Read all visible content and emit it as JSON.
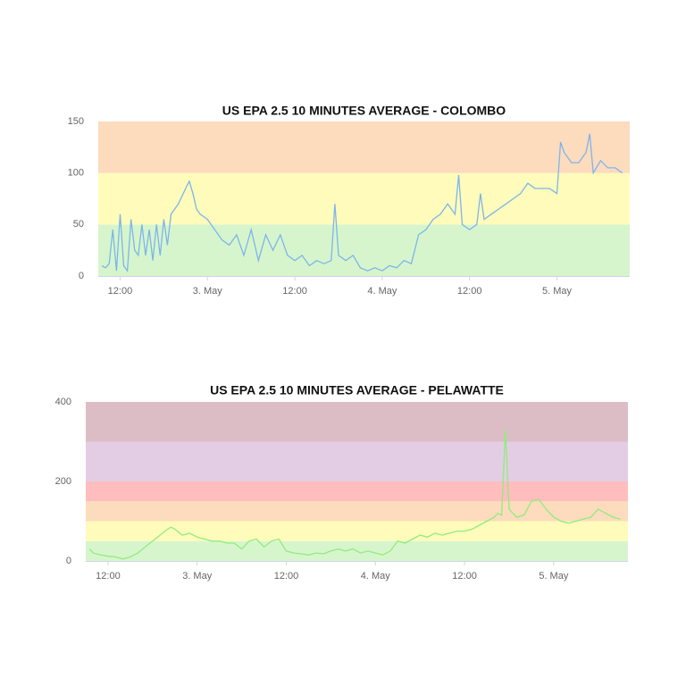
{
  "chart_data": [
    {
      "type": "line",
      "title": "US EPA 2.5 10 MINUTES AVERAGE - COLOMBO",
      "color": "#7cb5ec",
      "x": [
        9.5,
        10,
        10.5,
        11,
        11.5,
        12,
        12.5,
        13,
        13.5,
        14,
        14.5,
        15,
        15.5,
        16,
        16.5,
        17,
        17.5,
        18,
        18.5,
        19,
        20,
        21,
        21.5,
        22,
        22.5,
        23,
        24,
        25,
        26,
        27,
        28,
        29,
        30,
        31,
        32,
        33,
        34,
        35,
        36,
        37,
        38,
        39,
        40,
        41,
        41.5,
        42,
        43,
        44,
        45,
        46,
        47,
        48,
        49,
        50,
        51,
        52,
        53,
        54,
        55,
        56,
        57,
        58,
        58.5,
        59,
        60,
        61,
        61.5,
        62,
        63,
        64,
        65,
        66,
        67,
        68,
        69,
        70,
        71,
        72,
        72.5,
        73,
        74,
        75,
        76,
        76.5,
        77,
        78,
        79,
        80,
        81
      ],
      "values": [
        10,
        8,
        12,
        45,
        5,
        60,
        10,
        5,
        55,
        25,
        20,
        50,
        20,
        45,
        15,
        50,
        20,
        55,
        30,
        60,
        70,
        85,
        92,
        80,
        65,
        60,
        55,
        45,
        35,
        30,
        40,
        20,
        45,
        15,
        40,
        25,
        40,
        20,
        15,
        20,
        10,
        15,
        12,
        15,
        70,
        20,
        15,
        20,
        8,
        5,
        8,
        5,
        10,
        8,
        15,
        12,
        40,
        45,
        55,
        60,
        70,
        60,
        98,
        50,
        45,
        50,
        80,
        55,
        60,
        65,
        70,
        75,
        80,
        90,
        85,
        85,
        85,
        80,
        130,
        120,
        110,
        110,
        120,
        138,
        100,
        112,
        105,
        105,
        100
      ],
      "xlim": [
        9,
        82
      ],
      "xticks": [
        {
          "value": 12,
          "label": "12:00"
        },
        {
          "value": 24,
          "label": "3. May"
        },
        {
          "value": 36,
          "label": "12:00"
        },
        {
          "value": 48,
          "label": "4. May"
        },
        {
          "value": 60,
          "label": "12:00"
        },
        {
          "value": 72,
          "label": "5. May"
        }
      ],
      "ylim": [
        0,
        150
      ],
      "yticks": [
        0,
        50,
        100,
        150
      ],
      "bands": [
        {
          "from": 0,
          "to": 50,
          "color": "#d7f5cc"
        },
        {
          "from": 50,
          "to": 100,
          "color": "#fffbbb"
        },
        {
          "from": 100,
          "to": 150,
          "color": "#fddbbd"
        }
      ]
    },
    {
      "type": "line",
      "title": "US EPA 2.5 10 MINUTES AVERAGE - PELAWATTE",
      "color": "#90ed7d",
      "x": [
        9.5,
        10,
        11,
        12,
        13,
        14,
        15,
        16,
        17,
        18,
        19,
        20,
        20.5,
        21,
        22,
        23,
        24,
        25,
        26,
        27,
        28,
        29,
        30,
        31,
        32,
        33,
        34,
        35,
        36,
        37,
        38,
        39,
        40,
        41,
        42,
        43,
        44,
        45,
        46,
        47,
        48,
        49,
        50,
        51,
        52,
        53,
        54,
        55,
        56,
        57,
        58,
        59,
        60,
        61,
        62,
        63,
        64,
        64.5,
        65,
        65.5,
        66,
        67,
        68,
        69,
        70,
        71,
        72,
        73,
        74,
        75,
        76,
        77,
        78,
        79,
        80,
        81
      ],
      "values": [
        30,
        20,
        15,
        12,
        10,
        5,
        10,
        20,
        35,
        50,
        65,
        80,
        85,
        80,
        65,
        70,
        60,
        55,
        50,
        50,
        45,
        45,
        30,
        50,
        55,
        35,
        50,
        55,
        25,
        20,
        18,
        15,
        20,
        18,
        25,
        30,
        25,
        30,
        20,
        25,
        20,
        15,
        25,
        50,
        45,
        55,
        65,
        60,
        70,
        65,
        70,
        75,
        75,
        80,
        90,
        100,
        110,
        120,
        115,
        330,
        130,
        110,
        115,
        150,
        155,
        130,
        110,
        100,
        95,
        100,
        105,
        110,
        130,
        120,
        110,
        105
      ],
      "xlim": [
        9,
        82
      ],
      "xticks": [
        {
          "value": 12,
          "label": "12:00"
        },
        {
          "value": 24,
          "label": "3. May"
        },
        {
          "value": 36,
          "label": "12:00"
        },
        {
          "value": 48,
          "label": "4. May"
        },
        {
          "value": 60,
          "label": "12:00"
        },
        {
          "value": 72,
          "label": "5. May"
        }
      ],
      "ylim": [
        0,
        400
      ],
      "yticks": [
        0,
        200,
        400
      ],
      "bands": [
        {
          "from": 0,
          "to": 50,
          "color": "#d7f5cc"
        },
        {
          "from": 50,
          "to": 100,
          "color": "#fffbbb"
        },
        {
          "from": 100,
          "to": 150,
          "color": "#fddbbd"
        },
        {
          "from": 150,
          "to": 200,
          "color": "#ffbdbd"
        },
        {
          "from": 200,
          "to": 300,
          "color": "#e3cde5"
        },
        {
          "from": 300,
          "to": 400,
          "color": "#dcbdc5"
        }
      ]
    }
  ]
}
